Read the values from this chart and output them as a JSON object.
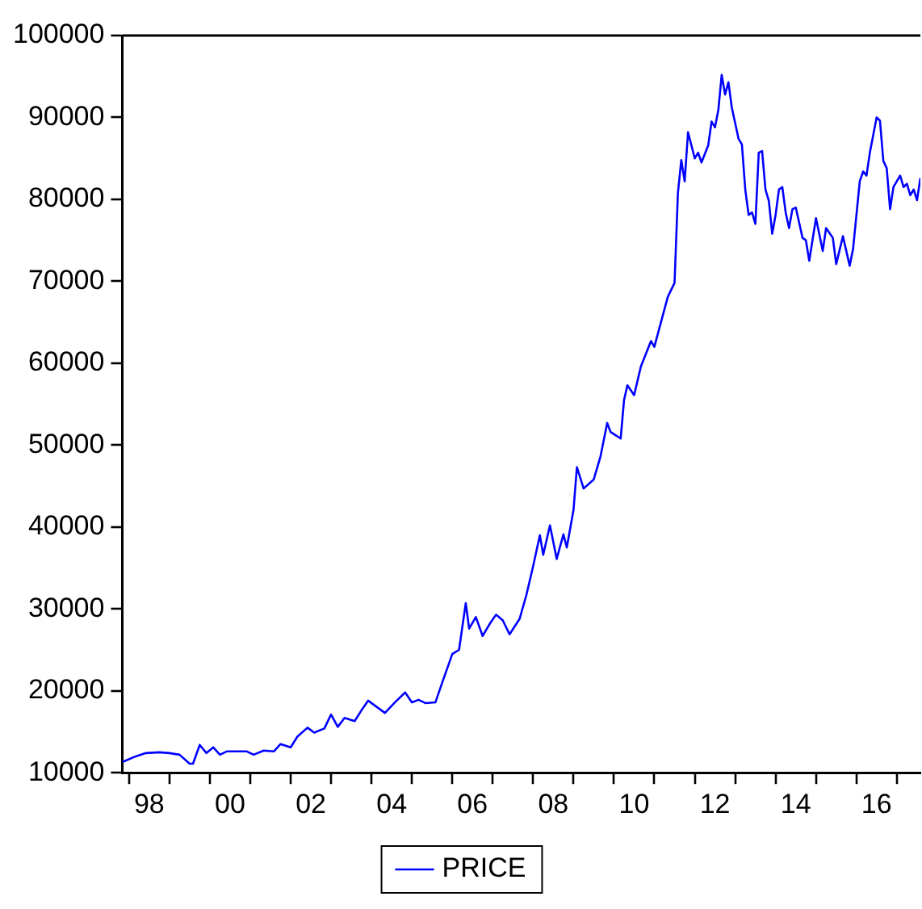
{
  "chart_data": {
    "type": "line",
    "legend": "bottom",
    "marker": "none",
    "grid": false,
    "x": [
      "1997-11",
      "1998-03",
      "1998-06",
      "1998-10",
      "1999-01",
      "1999-04",
      "1999-07",
      "1999-08",
      "1999-10",
      "1999-12",
      "2000-02",
      "2000-04",
      "2000-06",
      "2000-12",
      "2001-02",
      "2001-05",
      "2001-08",
      "2001-10",
      "2002-01",
      "2002-03",
      "2002-06",
      "2002-08",
      "2002-11",
      "2003-01",
      "2003-03",
      "2003-05",
      "2003-08",
      "2003-10",
      "2003-12",
      "2004-05",
      "2004-08",
      "2004-11",
      "2005-01",
      "2005-03",
      "2005-05",
      "2005-08",
      "2005-10",
      "2006-01",
      "2006-03",
      "2006-05",
      "2006-06",
      "2006-08",
      "2006-10",
      "2006-12",
      "2007-02",
      "2007-04",
      "2007-06",
      "2007-09",
      "2007-11",
      "2008-01",
      "2008-03",
      "2008-04",
      "2008-06",
      "2008-08",
      "2008-10",
      "2008-11",
      "2009-01",
      "2009-02",
      "2009-04",
      "2009-07",
      "2009-09",
      "2009-11",
      "2009-12",
      "2010-03",
      "2010-04",
      "2010-05",
      "2010-07",
      "2010-09",
      "2010-12",
      "2011-01",
      "2011-05",
      "2011-07",
      "2011-08",
      "2011-09",
      "2011-10",
      "2011-11",
      "2012-01",
      "2012-02",
      "2012-03",
      "2012-05",
      "2012-06",
      "2012-07",
      "2012-08",
      "2012-09",
      "2012-10",
      "2012-11",
      "2012-12",
      "2013-02",
      "2013-03",
      "2013-04",
      "2013-05",
      "2013-06",
      "2013-07",
      "2013-08",
      "2013-09",
      "2013-10",
      "2013-11",
      "2013-12",
      "2014-01",
      "2014-02",
      "2014-03",
      "2014-04",
      "2014-05",
      "2014-06",
      "2014-07",
      "2014-09",
      "2014-10",
      "2014-11",
      "2015-01",
      "2015-03",
      "2015-04",
      "2015-06",
      "2015-07",
      "2015-09",
      "2015-11",
      "2015-12",
      "2016-02",
      "2016-03",
      "2016-04",
      "2016-05",
      "2016-07",
      "2016-08",
      "2016-09",
      "2016-10",
      "2016-11",
      "2016-12",
      "2017-02",
      "2017-03",
      "2017-04",
      "2017-05",
      "2017-06",
      "2017-07",
      "2017-08"
    ],
    "series": [
      {
        "name": "PRICE",
        "color": "#0000ff",
        "values": [
          11300,
          12000,
          12400,
          12500,
          12400,
          12200,
          11100,
          11100,
          13400,
          12400,
          13100,
          12200,
          12600,
          12600,
          12200,
          12700,
          12600,
          13500,
          13100,
          14400,
          15500,
          14900,
          15400,
          17100,
          15600,
          16700,
          16300,
          17600,
          18800,
          17300,
          18600,
          19800,
          18600,
          18900,
          18500,
          18600,
          21000,
          24500,
          25000,
          30700,
          27600,
          29000,
          26700,
          28100,
          29300,
          28600,
          26900,
          28800,
          31700,
          35200,
          39000,
          36600,
          40200,
          36100,
          39100,
          37500,
          42100,
          47300,
          44700,
          45800,
          48600,
          52700,
          51600,
          50800,
          55500,
          57300,
          56100,
          59600,
          62700,
          62000,
          68100,
          69800,
          80800,
          84800,
          82200,
          88200,
          85000,
          85700,
          84500,
          86600,
          89500,
          88800,
          90900,
          95200,
          92800,
          94300,
          91200,
          87400,
          86700,
          81200,
          78100,
          78400,
          77000,
          85700,
          85900,
          81200,
          79800,
          75800,
          78100,
          81200,
          81500,
          78400,
          76500,
          78800,
          79000,
          75300,
          75000,
          72500,
          77700,
          73700,
          76500,
          75300,
          72100,
          75500,
          71900,
          73900,
          82200,
          83400,
          82900,
          85700,
          90000,
          89600,
          84700,
          83800,
          78800,
          81500,
          82900,
          81500,
          81900,
          80500,
          81200,
          79900,
          82600
        ]
      }
    ],
    "xlim": [
      "1997-11",
      "2017-08"
    ],
    "xticks": [
      {
        "value": "1998-01",
        "label": null
      },
      {
        "value": "1998-07",
        "label": "98"
      },
      {
        "value": "1999-01",
        "label": null
      },
      {
        "value": "2000-01",
        "label": null
      },
      {
        "value": "2000-07",
        "label": "00"
      },
      {
        "value": "2001-01",
        "label": null
      },
      {
        "value": "2002-01",
        "label": null
      },
      {
        "value": "2002-07",
        "label": "02"
      },
      {
        "value": "2003-01",
        "label": null
      },
      {
        "value": "2004-01",
        "label": null
      },
      {
        "value": "2004-07",
        "label": "04"
      },
      {
        "value": "2005-01",
        "label": null
      },
      {
        "value": "2006-01",
        "label": null
      },
      {
        "value": "2006-07",
        "label": "06"
      },
      {
        "value": "2007-01",
        "label": null
      },
      {
        "value": "2008-01",
        "label": null
      },
      {
        "value": "2008-07",
        "label": "08"
      },
      {
        "value": "2009-01",
        "label": null
      },
      {
        "value": "2010-01",
        "label": null
      },
      {
        "value": "2010-07",
        "label": "10"
      },
      {
        "value": "2011-01",
        "label": null
      },
      {
        "value": "2012-01",
        "label": null
      },
      {
        "value": "2012-07",
        "label": "12"
      },
      {
        "value": "2013-01",
        "label": null
      },
      {
        "value": "2014-01",
        "label": null
      },
      {
        "value": "2014-07",
        "label": "14"
      },
      {
        "value": "2015-01",
        "label": null
      },
      {
        "value": "2016-01",
        "label": null
      },
      {
        "value": "2016-07",
        "label": "16"
      },
      {
        "value": "2017-01",
        "label": null
      }
    ],
    "ylim": [
      10000,
      100000
    ],
    "yticks": [
      10000,
      20000,
      30000,
      40000,
      50000,
      60000,
      70000,
      80000,
      90000,
      100000
    ]
  }
}
